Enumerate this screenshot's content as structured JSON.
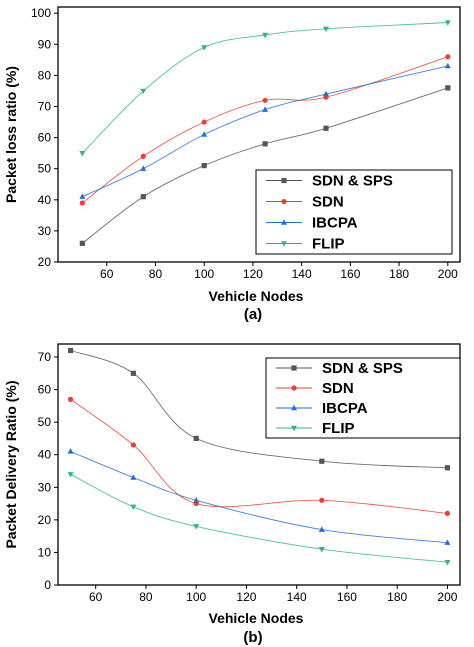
{
  "chart_data": [
    {
      "type": "line",
      "caption": "(a)",
      "xlabel": "Vehicle Nodes",
      "ylabel": "Packet loss ratio (%)",
      "xlim": [
        40,
        205
      ],
      "ylim": [
        20,
        102
      ],
      "xticks": [
        60,
        80,
        100,
        120,
        140,
        160,
        180,
        200
      ],
      "yticks": [
        20,
        30,
        40,
        50,
        60,
        70,
        80,
        90,
        100
      ],
      "legend_position": "bottom-right",
      "x": [
        50,
        75,
        100,
        125,
        150,
        200
      ],
      "series": [
        {
          "name": "SDN & SPS",
          "marker": "square",
          "color": "#555555",
          "values": [
            26,
            41,
            51,
            58,
            63,
            76
          ]
        },
        {
          "name": "SDN",
          "marker": "circle",
          "color": "#f03c32",
          "values": [
            39,
            54,
            65,
            72,
            73,
            86
          ]
        },
        {
          "name": "IBCPA",
          "marker": "triangle",
          "color": "#1e6fd9",
          "values": [
            41,
            50,
            61,
            69,
            74,
            83
          ]
        },
        {
          "name": "FLIP",
          "marker": "triangle-down",
          "color": "#2db87a",
          "values": [
            55,
            75,
            89,
            93,
            95,
            97
          ]
        }
      ]
    },
    {
      "type": "line",
      "caption": "(b)",
      "xlabel": "Vehicle Nodes",
      "ylabel": "Packet Delivery Ratio (%)",
      "xlim": [
        45,
        205
      ],
      "ylim": [
        0,
        74
      ],
      "xticks": [
        60,
        80,
        100,
        120,
        140,
        160,
        180,
        200
      ],
      "yticks": [
        0,
        10,
        20,
        30,
        40,
        50,
        60,
        70
      ],
      "legend_position": "top-right",
      "x": [
        50,
        75,
        100,
        150,
        200
      ],
      "series": [
        {
          "name": "SDN & SPS",
          "marker": "square",
          "color": "#555555",
          "values": [
            72,
            65,
            45,
            38,
            36
          ]
        },
        {
          "name": "SDN",
          "marker": "circle",
          "color": "#f03c32",
          "values": [
            57,
            43,
            25,
            26,
            22
          ]
        },
        {
          "name": "IBCPA",
          "marker": "triangle",
          "color": "#1e6fd9",
          "values": [
            41,
            33,
            26,
            17,
            13
          ]
        },
        {
          "name": "FLIP",
          "marker": "triangle-down",
          "color": "#2db87a",
          "values": [
            34,
            24,
            18,
            11,
            7
          ]
        }
      ]
    }
  ]
}
